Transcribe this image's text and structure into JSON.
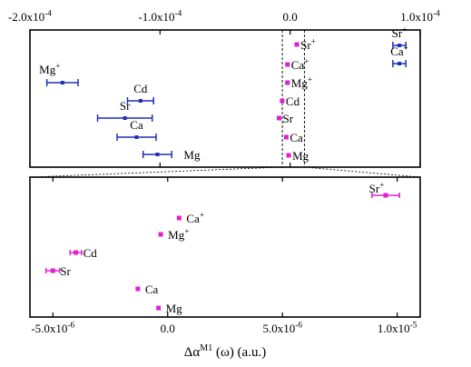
{
  "chart_data": [
    {
      "type": "scatter",
      "panel": "top",
      "title": "",
      "xlabel": "",
      "ylabel": "",
      "xaxis_position": "top",
      "xlim": [
        -0.0002,
        0.0001
      ],
      "xticks": [
        {
          "value": -0.0002,
          "label": "-2.0x10",
          "exp": "-4"
        },
        {
          "value": -0.0001,
          "label": "-1.0x10",
          "exp": "-4"
        },
        {
          "value": 0.0,
          "label": "0.0",
          "exp": ""
        },
        {
          "value": 0.0001,
          "label": "1.0x10",
          "exp": "-4"
        }
      ],
      "series": [
        {
          "color": "#1f2fb8",
          "points": [
            {
              "label": "Mg",
              "sup": "+",
              "x": -0.000175,
              "err": 1.2e-05
            },
            {
              "label": "Cd",
              "sup": "",
              "x": -0.000115,
              "err": 1e-05
            },
            {
              "label": "Sr",
              "sup": "",
              "x": -0.000127,
              "err": 2.1e-05
            },
            {
              "label": "Ca",
              "sup": "",
              "x": -0.000118,
              "err": 1.5e-05
            },
            {
              "label": "Mg",
              "sup": "",
              "x": -0.000102,
              "err": 1.1e-05
            },
            {
              "label": "Sr",
              "sup": "+",
              "x": 8.4e-05,
              "err": 5e-06
            },
            {
              "label": "Ca",
              "sup": "+",
              "x": 8.4e-05,
              "err": 5e-06
            }
          ]
        },
        {
          "color": "#e020d0",
          "points": [
            {
              "label": "Sr",
              "sup": "+",
              "x": 1e-06,
              "err": 0
            },
            {
              "label": "Ca",
              "sup": "+",
              "x": -2e-06,
              "err": 0
            },
            {
              "label": "Mg",
              "sup": "+",
              "x": -2e-06,
              "err": 0
            },
            {
              "label": "Cd",
              "sup": "",
              "x": -4e-06,
              "err": 0
            },
            {
              "label": "Sr",
              "sup": "",
              "x": -5e-06,
              "err": 0
            },
            {
              "label": "Ca",
              "sup": "",
              "x": -3e-06,
              "err": 0
            },
            {
              "label": "Mg",
              "sup": "",
              "x": -2.5e-06,
              "err": 0
            }
          ]
        }
      ]
    },
    {
      "type": "scatter",
      "panel": "bottom",
      "title": "",
      "ylabel": "",
      "xlabel": "Δα",
      "xlabel_sup": "M1",
      "xlabel_rest": "(ω)  (a.u.)",
      "xlim": [
        -6e-06,
        1.1e-05
      ],
      "xticks": [
        {
          "value": -5e-06,
          "label": "-5.0x10",
          "exp": "-6"
        },
        {
          "value": 0.0,
          "label": "0.0",
          "exp": ""
        },
        {
          "value": 5e-06,
          "label": "5.0x10",
          "exp": "-6"
        },
        {
          "value": 1e-05,
          "label": "1.0x10",
          "exp": "-5"
        }
      ],
      "series": [
        {
          "color": "#e020d0",
          "points": [
            {
              "label": "Sr",
              "sup": "+",
              "x": 9.5e-06,
              "err": 6e-07
            },
            {
              "label": "Ca",
              "sup": "+",
              "x": 5e-07,
              "err": 0
            },
            {
              "label": "Mg",
              "sup": "+",
              "x": -3e-07,
              "err": 0
            },
            {
              "label": "Cd",
              "sup": "",
              "x": -4e-06,
              "err": 2.5e-07
            },
            {
              "label": "Sr",
              "sup": "",
              "x": -5e-06,
              "err": 3e-07
            },
            {
              "label": "Ca",
              "sup": "",
              "x": -1.3e-06,
              "err": 0
            },
            {
              "label": "Mg",
              "sup": "",
              "x": -4e-07,
              "err": 0
            }
          ]
        }
      ]
    }
  ]
}
